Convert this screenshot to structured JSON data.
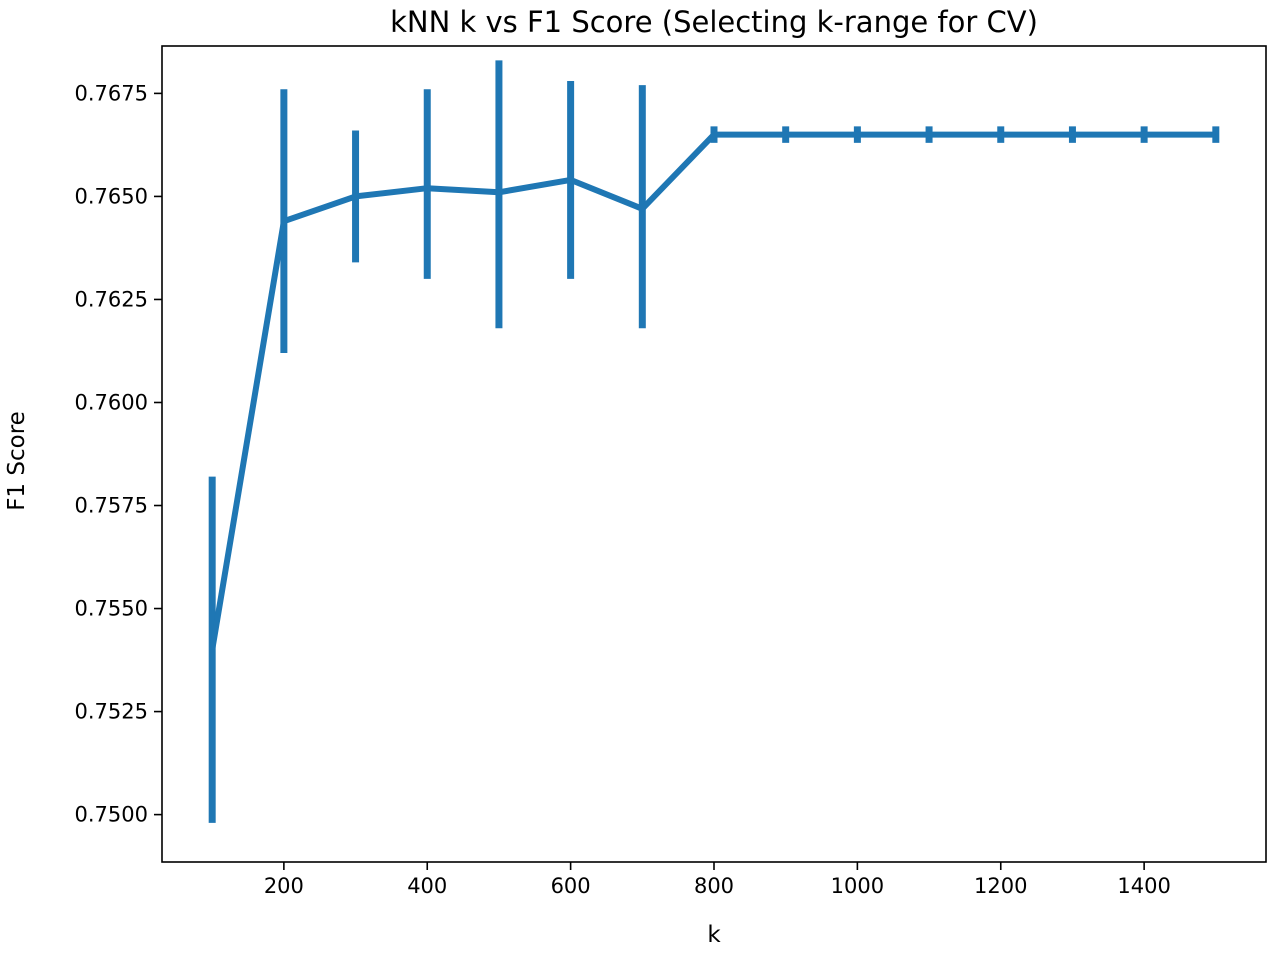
{
  "chart_data": {
    "type": "line",
    "title": "kNN k vs F1 Score (Selecting k-range for CV)",
    "xlabel": "k",
    "ylabel": "F1 Score",
    "xlim": [
      30,
      1570
    ],
    "ylim": [
      0.74885,
      0.76865
    ],
    "xticks": [
      200,
      400,
      600,
      800,
      1000,
      1200,
      1400
    ],
    "xtick_labels": [
      "200",
      "400",
      "600",
      "800",
      "1000",
      "1200",
      "1400"
    ],
    "yticks": [
      0.75,
      0.7525,
      0.755,
      0.7575,
      0.76,
      0.7625,
      0.765,
      0.7675
    ],
    "ytick_labels": [
      "0.7500",
      "0.7525",
      "0.7550",
      "0.7575",
      "0.7600",
      "0.7625",
      "0.7650",
      "0.7675"
    ],
    "grid": false,
    "color": "#1f77b4",
    "series": [
      {
        "x": [
          100,
          200,
          300,
          400,
          500,
          600,
          700,
          800,
          900,
          1000,
          1100,
          1200,
          1300,
          1400,
          1500
        ],
        "y": [
          0.754,
          0.7644,
          0.765,
          0.7652,
          0.7651,
          0.7654,
          0.7647,
          0.7665,
          0.7665,
          0.7665,
          0.7665,
          0.7665,
          0.7665,
          0.7665,
          0.7665
        ],
        "yerr_low": [
          0.7498,
          0.7612,
          0.7634,
          0.763,
          0.7618,
          0.763,
          0.7618,
          0.7663,
          0.7663,
          0.7663,
          0.7663,
          0.7663,
          0.7663,
          0.7663,
          0.7663
        ],
        "yerr_high": [
          0.7582,
          0.7676,
          0.7666,
          0.7676,
          0.7683,
          0.7678,
          0.7677,
          0.7667,
          0.7667,
          0.7667,
          0.7667,
          0.7667,
          0.7667,
          0.7667,
          0.7667
        ]
      }
    ]
  }
}
